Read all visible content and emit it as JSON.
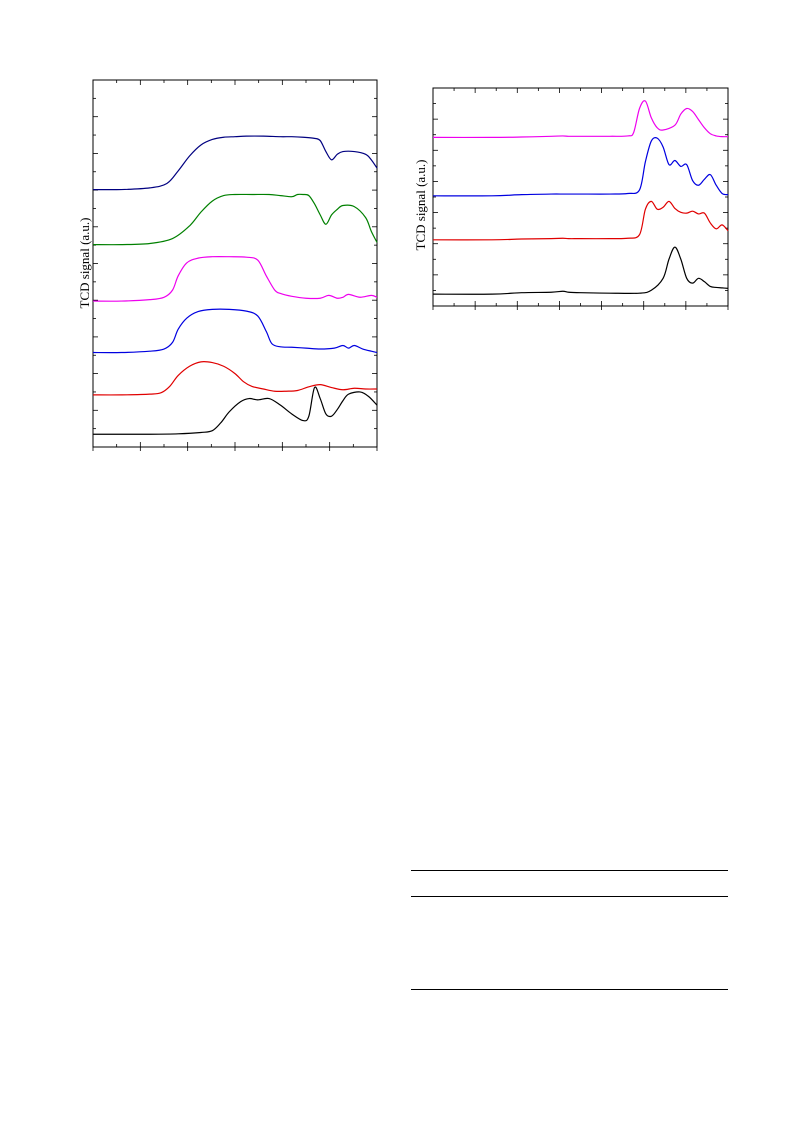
{
  "chart_data": [
    {
      "type": "line",
      "ylabel": "TCD signal (a.u.)",
      "xlim": [
        0,
        100
      ],
      "grid": false,
      "series": [
        {
          "color": "#000000",
          "x": [
            0,
            10,
            20,
            30,
            38,
            42,
            45,
            48,
            52,
            55,
            58,
            62,
            66,
            70,
            74,
            76,
            78,
            80,
            82,
            84,
            86,
            88,
            90,
            94,
            97,
            100
          ],
          "y": [
            0.04,
            0.04,
            0.04,
            0.05,
            0.08,
            0.12,
            0.3,
            0.55,
            0.78,
            0.85,
            0.82,
            0.85,
            0.7,
            0.5,
            0.35,
            0.45,
            1.1,
            0.85,
            0.5,
            0.45,
            0.6,
            0.8,
            0.95,
            1.0,
            0.9,
            0.7
          ]
        },
        {
          "color": "#e00000",
          "x": [
            0,
            10,
            20,
            24,
            27,
            30,
            34,
            38,
            42,
            46,
            50,
            53,
            56,
            60,
            64,
            68,
            72,
            76,
            80,
            84,
            88,
            92,
            96,
            100
          ],
          "y": [
            0.02,
            0.02,
            0.04,
            0.08,
            0.25,
            0.55,
            0.8,
            0.92,
            0.9,
            0.8,
            0.6,
            0.38,
            0.25,
            0.18,
            0.12,
            0.12,
            0.14,
            0.24,
            0.3,
            0.22,
            0.16,
            0.2,
            0.18,
            0.18
          ]
        },
        {
          "color": "#0000e0",
          "x": [
            0,
            10,
            20,
            25,
            28,
            30,
            33,
            37,
            42,
            48,
            54,
            58,
            61,
            63,
            66,
            70,
            75,
            80,
            85,
            88,
            90,
            92,
            95,
            98,
            100
          ],
          "y": [
            0.02,
            0.02,
            0.05,
            0.1,
            0.25,
            0.55,
            0.8,
            0.95,
            1.0,
            1.0,
            0.96,
            0.85,
            0.5,
            0.22,
            0.15,
            0.14,
            0.12,
            0.1,
            0.12,
            0.18,
            0.12,
            0.18,
            0.1,
            0.05,
            0.02
          ]
        },
        {
          "color": "#ee00ee",
          "x": [
            0,
            10,
            20,
            25,
            28,
            30,
            33,
            37,
            42,
            48,
            54,
            58,
            61,
            64,
            66,
            70,
            75,
            80,
            83,
            86,
            88,
            90,
            94,
            98,
            100
          ],
          "y": [
            0.02,
            0.02,
            0.05,
            0.1,
            0.25,
            0.55,
            0.82,
            0.92,
            0.95,
            0.95,
            0.94,
            0.88,
            0.55,
            0.25,
            0.18,
            0.12,
            0.08,
            0.08,
            0.14,
            0.08,
            0.1,
            0.16,
            0.1,
            0.14,
            0.1
          ]
        },
        {
          "color": "#008000",
          "x": [
            0,
            10,
            20,
            28,
            34,
            38,
            42,
            46,
            50,
            56,
            62,
            66,
            70,
            72,
            74,
            76,
            78,
            80,
            82,
            84,
            86,
            88,
            92,
            96,
            98,
            100
          ],
          "y": [
            0.01,
            0.01,
            0.03,
            0.12,
            0.35,
            0.6,
            0.8,
            0.9,
            0.92,
            0.92,
            0.92,
            0.9,
            0.88,
            0.92,
            0.92,
            0.9,
            0.75,
            0.55,
            0.38,
            0.55,
            0.65,
            0.72,
            0.7,
            0.5,
            0.25,
            0.05
          ]
        },
        {
          "color": "#000080",
          "x": [
            0,
            10,
            20,
            26,
            30,
            34,
            38,
            42,
            46,
            50,
            54,
            60,
            66,
            70,
            74,
            78,
            80,
            82,
            84,
            86,
            88,
            92,
            96,
            98,
            100
          ],
          "y": [
            0.01,
            0.01,
            0.04,
            0.12,
            0.35,
            0.62,
            0.82,
            0.92,
            0.96,
            0.97,
            0.98,
            0.98,
            0.97,
            0.97,
            0.96,
            0.94,
            0.9,
            0.7,
            0.55,
            0.65,
            0.7,
            0.7,
            0.65,
            0.55,
            0.4
          ]
        }
      ]
    },
    {
      "type": "line",
      "ylabel": "TCD signal (a.u.)",
      "xlim": [
        0,
        100
      ],
      "grid": false,
      "series": [
        {
          "color": "#000000",
          "x": [
            0,
            20,
            30,
            40,
            44,
            46,
            50,
            60,
            70,
            74,
            78,
            80,
            82,
            84,
            86,
            88,
            90,
            92,
            94,
            96,
            98,
            100
          ],
          "y": [
            0.02,
            0.02,
            0.05,
            0.06,
            0.08,
            0.06,
            0.05,
            0.04,
            0.04,
            0.1,
            0.35,
            0.75,
            1.0,
            0.75,
            0.35,
            0.25,
            0.35,
            0.28,
            0.18,
            0.16,
            0.15,
            0.14
          ]
        },
        {
          "color": "#e00000",
          "x": [
            0,
            20,
            30,
            40,
            44,
            46,
            50,
            60,
            66,
            70,
            72,
            74,
            76,
            78,
            80,
            82,
            84,
            86,
            88,
            90,
            92,
            94,
            96,
            98,
            100
          ],
          "y": [
            0.02,
            0.02,
            0.04,
            0.05,
            0.06,
            0.05,
            0.05,
            0.05,
            0.06,
            0.15,
            0.8,
            1.0,
            0.8,
            0.85,
            1.0,
            0.82,
            0.72,
            0.7,
            0.75,
            0.68,
            0.7,
            0.45,
            0.3,
            0.4,
            0.25
          ]
        },
        {
          "color": "#0000e0",
          "x": [
            0,
            20,
            30,
            40,
            44,
            46,
            50,
            60,
            66,
            70,
            72,
            74,
            76,
            78,
            80,
            82,
            84,
            86,
            88,
            90,
            92,
            94,
            96,
            98,
            100
          ],
          "y": [
            0.02,
            0.02,
            0.04,
            0.05,
            0.05,
            0.05,
            0.05,
            0.05,
            0.06,
            0.12,
            0.6,
            0.95,
            1.0,
            0.85,
            0.55,
            0.62,
            0.52,
            0.55,
            0.28,
            0.2,
            0.3,
            0.38,
            0.2,
            0.06,
            0.04
          ]
        },
        {
          "color": "#ee00ee",
          "x": [
            0,
            20,
            30,
            40,
            44,
            46,
            50,
            60,
            66,
            68,
            70,
            72,
            74,
            76,
            78,
            82,
            84,
            86,
            88,
            90,
            92,
            94,
            96,
            98,
            100
          ],
          "y": [
            0.02,
            0.02,
            0.03,
            0.05,
            0.06,
            0.05,
            0.05,
            0.05,
            0.06,
            0.15,
            0.8,
            1.0,
            0.55,
            0.28,
            0.22,
            0.35,
            0.65,
            0.8,
            0.72,
            0.5,
            0.28,
            0.12,
            0.06,
            0.04,
            0.04
          ]
        }
      ]
    }
  ]
}
